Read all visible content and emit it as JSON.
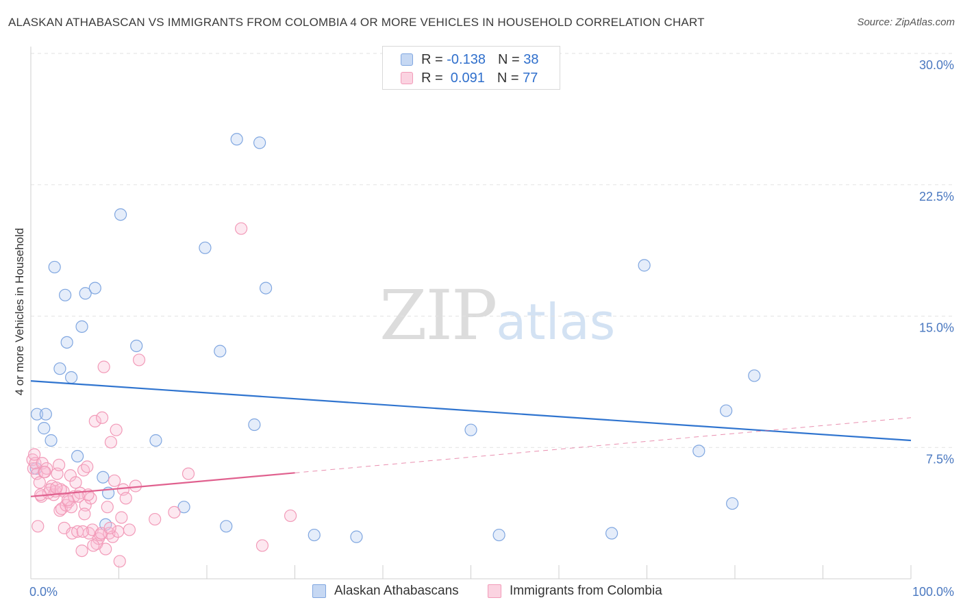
{
  "title": "ALASKAN ATHABASCAN VS IMMIGRANTS FROM COLOMBIA 4 OR MORE VEHICLES IN HOUSEHOLD CORRELATION CHART",
  "source": "Source: ZipAtlas.com",
  "watermark": {
    "zip": "ZIP",
    "atlas": "atlas"
  },
  "legend": {
    "rows": [
      {
        "r_label": "R = ",
        "r_value": "-0.138",
        "n_label": "N = ",
        "n_value": "38",
        "color": "#7fa6e0"
      },
      {
        "r_label": "R = ",
        "r_value": " 0.091",
        "n_label": "N = ",
        "n_value": "77",
        "color": "#f29ab8"
      }
    ]
  },
  "bottom_legend": [
    "Alaskan Athabascans",
    "Immigrants from Colombia"
  ],
  "chart_data": {
    "type": "scatter",
    "title": "ALASKAN ATHABASCAN VS IMMIGRANTS FROM COLOMBIA 4 OR MORE VEHICLES IN HOUSEHOLD CORRELATION CHART",
    "xlabel": "",
    "ylabel": "4 or more Vehicles in Household",
    "xlim": [
      0,
      100
    ],
    "ylim": [
      0,
      30
    ],
    "x_tick_labels": [
      "0.0%",
      "100.0%"
    ],
    "y_ticks": [
      7.5,
      15.0,
      22.5,
      30.0
    ],
    "y_tick_labels": [
      "7.5%",
      "15.0%",
      "22.5%",
      "30.0%"
    ],
    "grid": true,
    "series": [
      {
        "name": "Alaskan Athabascans",
        "color": "#7fa6e0",
        "line_color": "#2f74cf",
        "R": -0.138,
        "N": 38,
        "trend": {
          "x0": 0,
          "y0": 11.3,
          "x1": 100,
          "y1": 7.9,
          "dashed_from": null
        },
        "points": [
          [
            0.6,
            6.3
          ],
          [
            0.7,
            9.4
          ],
          [
            1.5,
            8.6
          ],
          [
            1.7,
            9.4
          ],
          [
            2.3,
            7.9
          ],
          [
            2.7,
            17.8
          ],
          [
            3.3,
            12.0
          ],
          [
            3.9,
            16.2
          ],
          [
            4.1,
            13.5
          ],
          [
            4.6,
            11.5
          ],
          [
            5.3,
            7.0
          ],
          [
            5.8,
            14.4
          ],
          [
            6.2,
            16.3
          ],
          [
            7.3,
            16.6
          ],
          [
            8.2,
            5.8
          ],
          [
            8.5,
            3.1
          ],
          [
            8.8,
            4.9
          ],
          [
            10.2,
            20.8
          ],
          [
            12.0,
            13.3
          ],
          [
            14.2,
            7.9
          ],
          [
            17.4,
            4.1
          ],
          [
            19.8,
            18.9
          ],
          [
            21.5,
            13.0
          ],
          [
            22.2,
            3.0
          ],
          [
            23.4,
            25.1
          ],
          [
            26.0,
            24.9
          ],
          [
            25.4,
            8.8
          ],
          [
            26.7,
            16.6
          ],
          [
            32.2,
            2.5
          ],
          [
            37.0,
            2.4
          ],
          [
            50.0,
            8.5
          ],
          [
            53.2,
            2.5
          ],
          [
            66.0,
            2.6
          ],
          [
            69.7,
            17.9
          ],
          [
            75.9,
            7.3
          ],
          [
            79.0,
            9.6
          ],
          [
            82.2,
            11.6
          ],
          [
            79.7,
            4.3
          ]
        ]
      },
      {
        "name": "Immigrants from Colombia",
        "color": "#f29ab8",
        "line_color": "#e0608e",
        "R": 0.091,
        "N": 77,
        "trend": {
          "x0": 0,
          "y0": 4.7,
          "x1": 100,
          "y1": 9.2,
          "dashed_from": 30
        },
        "points": [
          [
            0.2,
            6.8
          ],
          [
            0.3,
            6.3
          ],
          [
            0.5,
            6.6
          ],
          [
            0.7,
            6.0
          ],
          [
            0.8,
            3.0
          ],
          [
            1.0,
            5.5
          ],
          [
            1.2,
            4.7
          ],
          [
            1.3,
            6.6
          ],
          [
            1.5,
            6.1
          ],
          [
            1.8,
            6.3
          ],
          [
            2.0,
            4.9
          ],
          [
            2.4,
            5.3
          ],
          [
            2.6,
            4.8
          ],
          [
            2.8,
            5.0
          ],
          [
            3.0,
            6.0
          ],
          [
            3.2,
            6.5
          ],
          [
            3.3,
            3.9
          ],
          [
            3.5,
            4.0
          ],
          [
            3.7,
            5.0
          ],
          [
            3.8,
            2.9
          ],
          [
            4.0,
            4.2
          ],
          [
            4.3,
            4.4
          ],
          [
            4.5,
            5.9
          ],
          [
            4.7,
            2.6
          ],
          [
            4.9,
            4.7
          ],
          [
            5.1,
            5.5
          ],
          [
            5.3,
            2.7
          ],
          [
            5.6,
            4.9
          ],
          [
            5.8,
            1.6
          ],
          [
            6.0,
            6.2
          ],
          [
            6.2,
            4.2
          ],
          [
            6.4,
            6.4
          ],
          [
            6.6,
            2.6
          ],
          [
            6.8,
            4.6
          ],
          [
            7.0,
            2.8
          ],
          [
            7.3,
            9.0
          ],
          [
            7.5,
            2.0
          ],
          [
            7.7,
            2.3
          ],
          [
            7.9,
            2.5
          ],
          [
            8.1,
            9.2
          ],
          [
            8.3,
            12.1
          ],
          [
            8.5,
            1.7
          ],
          [
            8.7,
            4.1
          ],
          [
            8.9,
            2.6
          ],
          [
            9.1,
            7.8
          ],
          [
            9.3,
            2.4
          ],
          [
            9.5,
            5.6
          ],
          [
            9.7,
            8.5
          ],
          [
            9.9,
            2.7
          ],
          [
            10.1,
            1.0
          ],
          [
            10.3,
            3.5
          ],
          [
            10.5,
            5.1
          ],
          [
            10.8,
            4.6
          ],
          [
            11.2,
            2.8
          ],
          [
            11.9,
            5.3
          ],
          [
            12.3,
            12.5
          ],
          [
            14.1,
            3.4
          ],
          [
            16.3,
            3.8
          ],
          [
            17.9,
            6.0
          ],
          [
            23.9,
            20.0
          ],
          [
            26.3,
            1.9
          ],
          [
            29.5,
            3.6
          ],
          [
            4.6,
            4.1
          ],
          [
            5.9,
            2.7
          ],
          [
            6.5,
            4.8
          ],
          [
            7.1,
            1.9
          ],
          [
            2.2,
            5.1
          ],
          [
            1.6,
            6.1
          ],
          [
            3.4,
            5.1
          ],
          [
            4.2,
            4.5
          ],
          [
            5.4,
            4.7
          ],
          [
            6.1,
            3.7
          ],
          [
            8.0,
            2.6
          ],
          [
            9.0,
            2.9
          ],
          [
            1.1,
            4.8
          ],
          [
            0.4,
            7.1
          ],
          [
            2.9,
            5.2
          ]
        ]
      }
    ]
  }
}
